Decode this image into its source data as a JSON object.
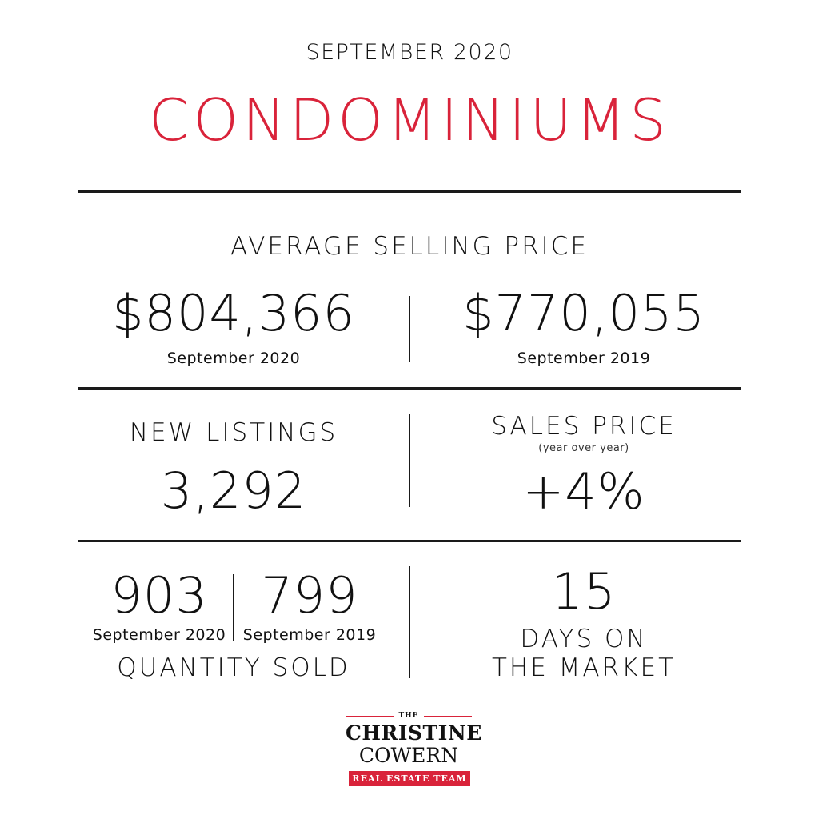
{
  "header": {
    "period": "SEPTEMBER 2020",
    "title": "CONDOMINIUMS"
  },
  "colors": {
    "accent": "#d9233a",
    "text": "#111111"
  },
  "average_selling_price": {
    "label": "AVERAGE SELLING PRICE",
    "current": {
      "value": "$804,366",
      "period": "September 2020"
    },
    "previous": {
      "value": "$770,055",
      "period": "September 2019"
    }
  },
  "new_listings": {
    "label": "NEW LISTINGS",
    "value": "3,292"
  },
  "sales_price": {
    "label": "SALES PRICE",
    "sublabel": "(year over year)",
    "value": "+4%"
  },
  "quantity_sold": {
    "current": {
      "value": "903",
      "period": "September 2020"
    },
    "previous": {
      "value": "799",
      "period": "September 2019"
    },
    "label": "QUANTITY SOLD"
  },
  "days_on_market": {
    "value": "15",
    "label_line1": "DAYS ON",
    "label_line2": "THE MARKET"
  },
  "logo": {
    "the": "THE",
    "name_line1": "CHRISTINE",
    "name_line2": "COWERN",
    "tagline": "REAL ESTATE TEAM"
  }
}
